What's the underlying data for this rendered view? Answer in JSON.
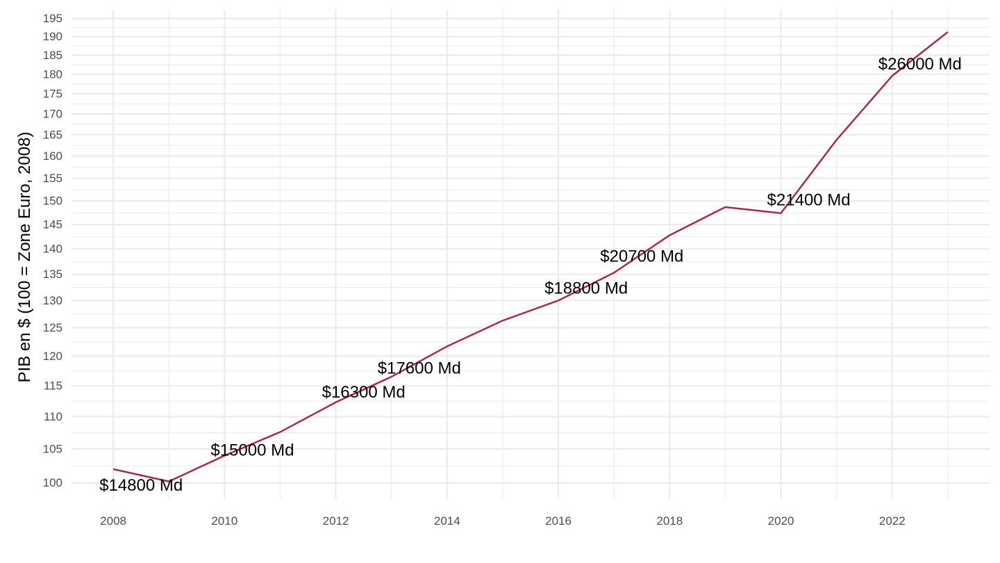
{
  "chart_data": {
    "type": "line",
    "ylabel": "PIB en $ (100 = Zone Euro, 2008)",
    "xlabel": "",
    "title": "",
    "y_scale": "log",
    "x": [
      2008,
      2009,
      2010,
      2011,
      2012,
      2013,
      2014,
      2015,
      2016,
      2017,
      2018,
      2019,
      2020,
      2021,
      2022,
      2023
    ],
    "series": [
      {
        "values": [
          102.0,
          100.2,
          104.0,
          107.6,
          112.3,
          116.5,
          121.7,
          126.3,
          130.0,
          135.3,
          142.8,
          148.7,
          147.4,
          163.8,
          179.6,
          191.3
        ],
        "color": "#b22234"
      }
    ],
    "annotations": [
      {
        "x": 2008.5,
        "y": 99.6,
        "text": "$14800 Md"
      },
      {
        "x": 2010.5,
        "y": 104.8,
        "text": "$15000 Md"
      },
      {
        "x": 2012.5,
        "y": 113.9,
        "text": "$16300 Md"
      },
      {
        "x": 2013.5,
        "y": 117.9,
        "text": "$17600 Md"
      },
      {
        "x": 2016.5,
        "y": 132.3,
        "text": "$18800 Md"
      },
      {
        "x": 2017.5,
        "y": 138.5,
        "text": "$20700 Md"
      },
      {
        "x": 2020.5,
        "y": 150.2,
        "text": "$21400 Md"
      },
      {
        "x": 2022.5,
        "y": 182.6,
        "text": "$26000 Md"
      }
    ],
    "x_ticks": [
      2008,
      2010,
      2012,
      2014,
      2016,
      2018,
      2020,
      2022
    ],
    "x_minor_ticks": [
      2009,
      2011,
      2013,
      2015,
      2017,
      2019,
      2021,
      2023
    ],
    "y_ticks": [
      100,
      105,
      110,
      115,
      120,
      125,
      130,
      135,
      140,
      145,
      150,
      155,
      160,
      165,
      170,
      175,
      180,
      185,
      190,
      195
    ],
    "xlim": [
      2007.25,
      2023.75
    ],
    "ylim": [
      97.7,
      197.5
    ],
    "grid": true,
    "legend": "none"
  }
}
